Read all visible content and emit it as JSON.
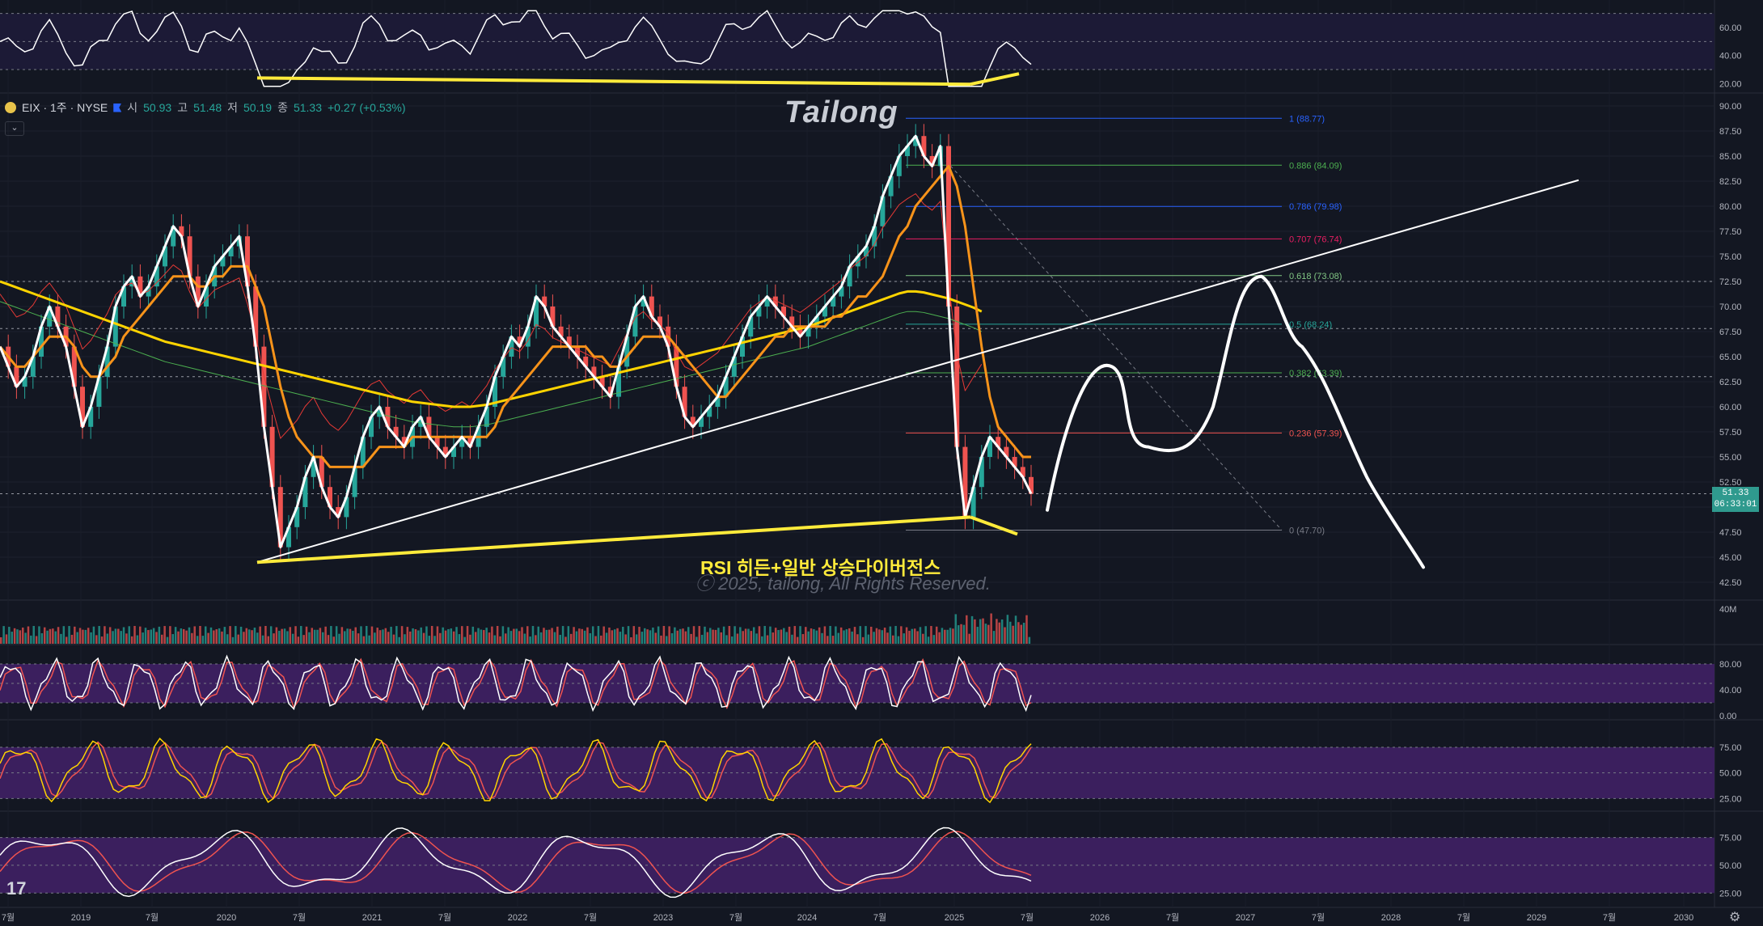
{
  "legend": {
    "symbol": "EIX · 1주 · NYSE",
    "open_label": "시",
    "open": "50.93",
    "high_label": "고",
    "high": "51.48",
    "low_label": "저",
    "low": "50.19",
    "close_label": "종",
    "close": "51.33",
    "change": "+0.27 (+0.53%)"
  },
  "watermark": "Tailong",
  "annotation": "RSI 히든+일반 상승다이버전스",
  "copyright": "ⓒ 2025, tailong, All Rights Reserved.",
  "tv_logo": "17",
  "price_tag": {
    "price": "51.33",
    "countdown": "06:33:01"
  },
  "colors": {
    "background": "#131722",
    "price_line": "#ffffff",
    "ema_orange": "#f7931a",
    "ma_yellow": "#ffd400",
    "ma_red": "#e53935",
    "ma_green": "#4caf50",
    "candle_up": "#26a69a",
    "candle_down": "#ef5350",
    "divergence": "#ffeb3b",
    "osc_band": "#3b1f5e"
  },
  "chart_data": [
    {
      "type": "line",
      "name": "price",
      "y_axis_ticks": [
        "90.00",
        "87.50",
        "85.00",
        "82.50",
        "80.00",
        "77.50",
        "75.00",
        "72.50",
        "70.00",
        "67.50",
        "65.00",
        "62.50",
        "60.00",
        "57.50",
        "55.00",
        "52.50",
        "50.00",
        "47.50",
        "45.00",
        "42.50"
      ],
      "ylim": [
        42.5,
        90
      ],
      "x_axis_ticks": [
        "7월",
        "2019",
        "7월",
        "2020",
        "7월",
        "2021",
        "7월",
        "2022",
        "7월",
        "2023",
        "7월",
        "2024",
        "7월",
        "2025",
        "7월",
        "2026",
        "7월",
        "2027",
        "7월",
        "2028",
        "7월",
        "2029",
        "7월",
        "2030"
      ],
      "close": [
        66,
        64,
        62,
        63,
        65,
        68,
        70,
        68,
        66,
        62,
        58,
        60,
        63,
        66,
        70,
        72,
        73,
        71,
        72,
        74,
        76,
        78,
        77,
        73,
        70,
        72,
        74,
        75,
        76,
        77,
        72,
        66,
        58,
        52,
        46,
        48,
        50,
        53,
        55,
        52,
        50,
        49,
        51,
        54,
        57,
        59,
        60,
        58,
        57,
        56,
        58,
        59,
        57,
        56,
        55,
        56,
        57,
        56,
        58,
        60,
        63,
        65,
        67,
        66,
        68,
        71,
        70,
        68,
        67,
        66,
        65,
        64,
        63,
        62,
        61,
        64,
        67,
        70,
        71,
        69,
        68,
        66,
        62,
        59,
        58,
        59,
        60,
        61,
        63,
        65,
        67,
        69,
        70,
        71,
        70,
        69,
        68,
        67,
        68,
        69,
        70,
        71,
        72,
        74,
        75,
        76,
        78,
        81,
        83,
        85,
        86,
        87,
        85,
        84,
        86,
        70,
        56,
        49,
        52,
        55,
        57,
        56,
        55,
        54,
        53,
        51.33
      ],
      "ema_orange": [
        66,
        65,
        64,
        64,
        65,
        66,
        67,
        67,
        67,
        66,
        64,
        63,
        63,
        64,
        65,
        67,
        68,
        69,
        70,
        71,
        72,
        73,
        73,
        73,
        72,
        72,
        73,
        73,
        74,
        74,
        74,
        72,
        70,
        66,
        62,
        59,
        57,
        56,
        55,
        55,
        54,
        54,
        54,
        54,
        54,
        55,
        56,
        56,
        56,
        56,
        57,
        57,
        57,
        57,
        57,
        57,
        57,
        57,
        57,
        57,
        58,
        60,
        61,
        62,
        63,
        64,
        65,
        66,
        66,
        66,
        66,
        66,
        65,
        65,
        64,
        64,
        65,
        66,
        67,
        67,
        67,
        67,
        66,
        65,
        64,
        63,
        62,
        61,
        61,
        62,
        63,
        64,
        65,
        66,
        67,
        67,
        68,
        68,
        68,
        68,
        68,
        69,
        69,
        70,
        71,
        71,
        72,
        73,
        75,
        77,
        78,
        80,
        81,
        82,
        83,
        84,
        82,
        78,
        72,
        66,
        61,
        58,
        57,
        56,
        55,
        55
      ],
      "ma_yellow": [
        72.5,
        72.2,
        71.9,
        71.6,
        71.3,
        71,
        70.7,
        70.4,
        70.1,
        69.8,
        69.5,
        69.2,
        68.9,
        68.6,
        68.3,
        68,
        67.7,
        67.4,
        67.1,
        66.8,
        66.5,
        66.3,
        66.1,
        65.9,
        65.7,
        65.5,
        65.3,
        65.1,
        64.9,
        64.7,
        64.5,
        64.3,
        64.1,
        63.9,
        63.7,
        63.5,
        63.3,
        63.1,
        62.9,
        62.7,
        62.5,
        62.3,
        62.1,
        61.9,
        61.7,
        61.5,
        61.3,
        61.1,
        60.9,
        60.7,
        60.5,
        60.4,
        60.3,
        60.2,
        60.1,
        60,
        60,
        60,
        60.1,
        60.2,
        60.4,
        60.6,
        60.8,
        61,
        61.2,
        61.4,
        61.6,
        61.8,
        62,
        62.2,
        62.4,
        62.6,
        62.8,
        63,
        63.2,
        63.4,
        63.6,
        63.8,
        64,
        64.2,
        64.4,
        64.6,
        64.8,
        65,
        65.2,
        65.4,
        65.6,
        65.8,
        66,
        66.2,
        66.4,
        66.6,
        66.8,
        67,
        67.2,
        67.4,
        67.6,
        67.8,
        68,
        68.3,
        68.6,
        68.9,
        69.2,
        69.5,
        69.8,
        70.1,
        70.4,
        70.7,
        71,
        71.3,
        71.5,
        71.5,
        71.4,
        71.2,
        71,
        70.8,
        70.5,
        70.2,
        69.9,
        69.5
      ],
      "fib_levels": [
        {
          "label": "1 (88.77)",
          "value": 88.77,
          "color": "#2962ff"
        },
        {
          "label": "0.886 (84.09)",
          "value": 84.09,
          "color": "#4caf50"
        },
        {
          "label": "0.786 (79.98)",
          "value": 79.98,
          "color": "#2962ff"
        },
        {
          "label": "0.707 (76.74)",
          "value": 76.74,
          "color": "#e91e63"
        },
        {
          "label": "0.618 (73.08)",
          "value": 73.08,
          "color": "#81c784"
        },
        {
          "label": "0.5 (68.24)",
          "value": 68.24,
          "color": "#26a69a"
        },
        {
          "label": "0.382 (63.39)",
          "value": 63.39,
          "color": "#4caf50"
        },
        {
          "label": "0.236 (57.39)",
          "value": 57.39,
          "color": "#ef5350"
        },
        {
          "label": "0 (47.70)",
          "value": 47.7,
          "color": "#787b86"
        }
      ],
      "grid": true
    },
    {
      "type": "line",
      "name": "RSI",
      "y_axis_ticks": [
        "60.00",
        "40.00",
        "20.00"
      ],
      "ylim": [
        15,
        75
      ]
    },
    {
      "type": "bar",
      "name": "volume",
      "y_axis_ticks": [
        "40M"
      ]
    },
    {
      "type": "line",
      "name": "stochastic",
      "y_axis_ticks": [
        "80.00",
        "40.00",
        "0.00"
      ],
      "ylim": [
        0,
        100
      ]
    },
    {
      "type": "line",
      "name": "oscillator-2",
      "y_axis_ticks": [
        "75.00",
        "50.00",
        "25.00"
      ],
      "ylim": [
        15,
        90
      ]
    },
    {
      "type": "line",
      "name": "oscillator-3",
      "y_axis_ticks": [
        "75.00",
        "50.00",
        "25.00"
      ],
      "ylim": [
        15,
        90
      ]
    }
  ]
}
